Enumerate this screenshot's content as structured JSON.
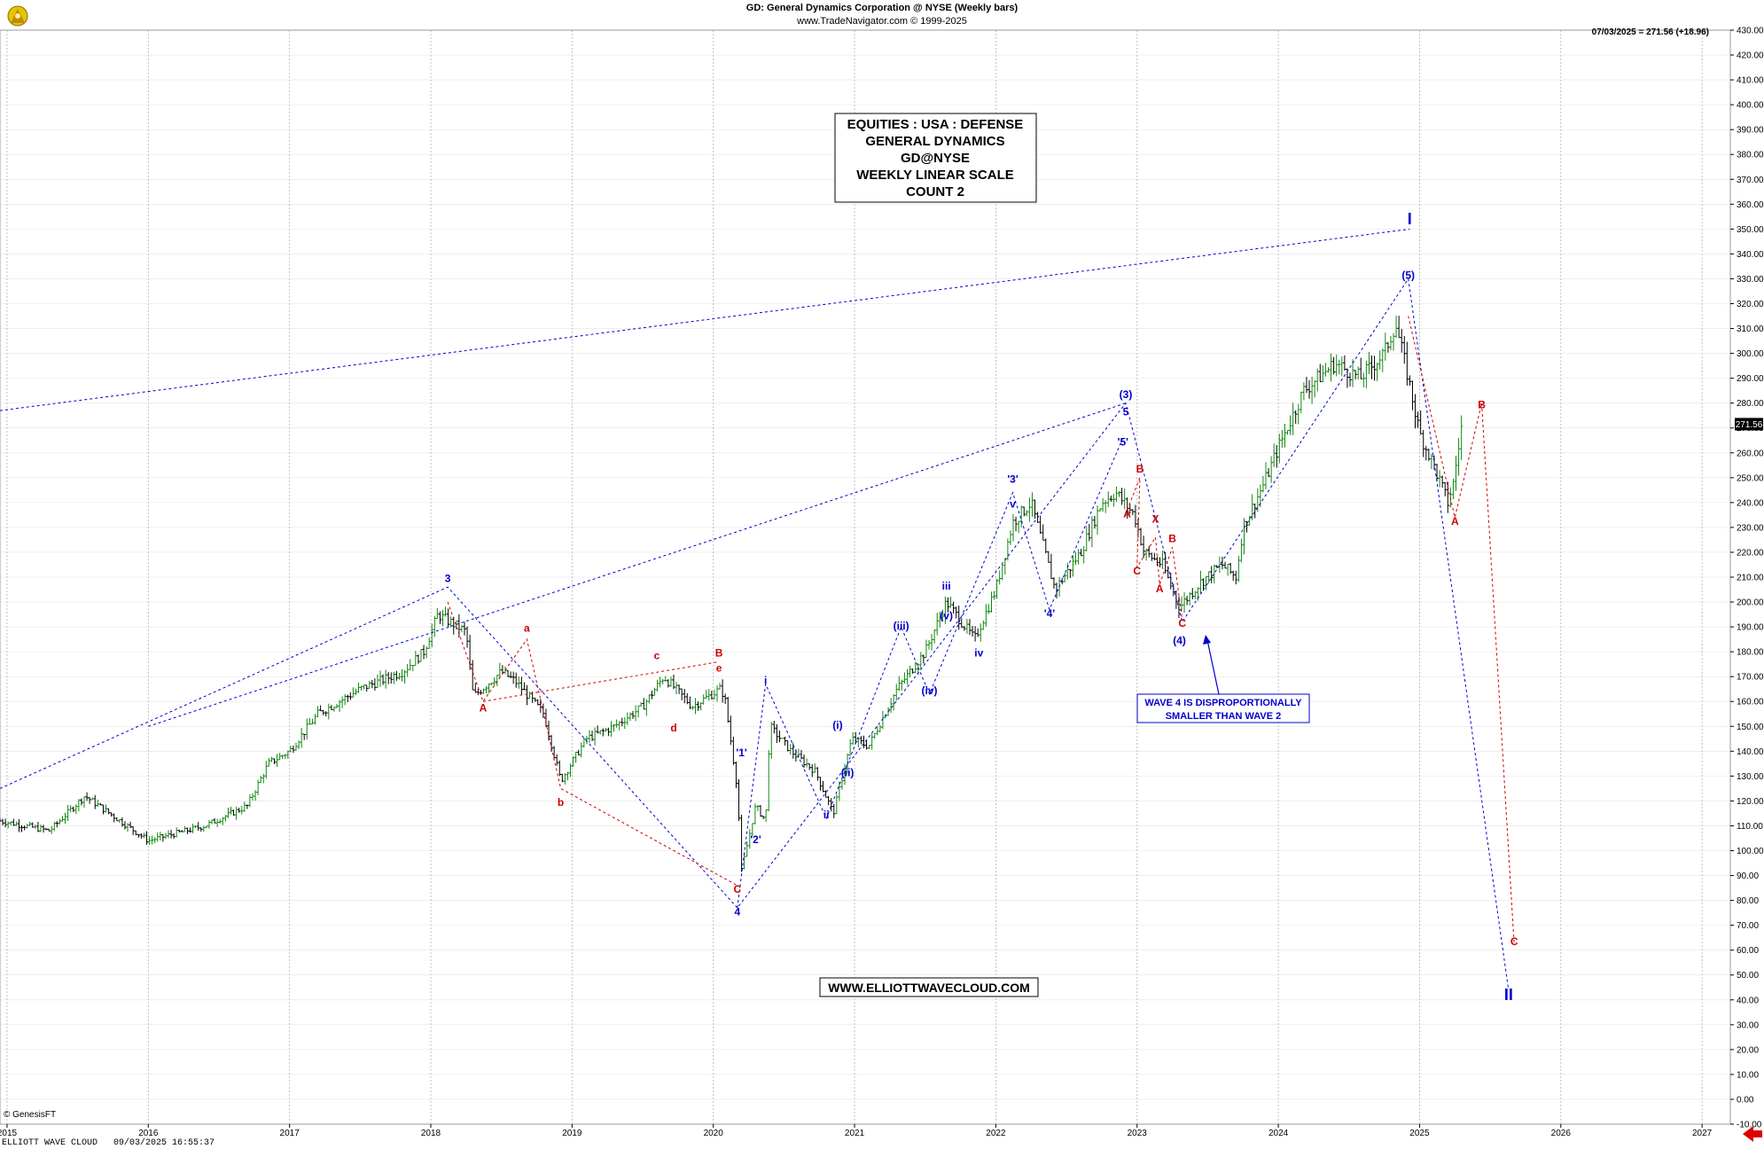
{
  "header": {
    "title": "GD:  General Dynamics Corporation @ NYSE  (Weekly bars)",
    "subtitle": "www.TradeNavigator.com © 1999-2025",
    "last_price_note": "07/03/2025 = 271.56 (+18.96)",
    "logo_text": "© GenesisFT"
  },
  "info_box": [
    "EQUITIES : USA : DEFENSE",
    "GENERAL DYNAMICS",
    "GD@NYSE",
    "WEEKLY LINEAR SCALE",
    "COUNT 2"
  ],
  "website_box": "WWW.ELLIOTTWAVECLOUD.COM",
  "note_box": [
    "WAVE 4 IS DISPROPORTIONALLY",
    "SMALLER THAN WAVE 2"
  ],
  "footer": "ELLIOTT WAVE CLOUD   09/03/2025 16:55:37",
  "last_price_label": "271.56",
  "colors": {
    "blue": "#0000cc",
    "red": "#cc0000",
    "grid": "#b4b4b4",
    "up": "#118811",
    "down": "#000000"
  },
  "chart_data": {
    "type": "line",
    "subtype": "weekly price bars with Elliott Wave annotations",
    "x_axis": {
      "labels": [
        "2015",
        "2016",
        "2017",
        "2018",
        "2019",
        "2020",
        "2021",
        "2022",
        "2023",
        "2024",
        "2025",
        "2026",
        "2027"
      ],
      "range": [
        2014.95,
        2027.2
      ]
    },
    "y_axis": {
      "min": -10,
      "max": 430,
      "step": 10,
      "position": "right",
      "unit": "USD"
    },
    "grid": true,
    "price_anchors": [
      [
        2014.95,
        112
      ],
      [
        2015.3,
        108
      ],
      [
        2015.55,
        122
      ],
      [
        2015.8,
        112
      ],
      [
        2016.0,
        104
      ],
      [
        2016.4,
        110
      ],
      [
        2016.7,
        118
      ],
      [
        2016.85,
        135
      ],
      [
        2017.0,
        140
      ],
      [
        2017.2,
        155
      ],
      [
        2017.5,
        165
      ],
      [
        2017.8,
        172
      ],
      [
        2017.95,
        180
      ],
      [
        2018.05,
        195
      ],
      [
        2018.25,
        188
      ],
      [
        2018.3,
        162
      ],
      [
        2018.5,
        172
      ],
      [
        2018.6,
        168
      ],
      [
        2018.8,
        155
      ],
      [
        2018.92,
        128
      ],
      [
        2019.1,
        145
      ],
      [
        2019.3,
        150
      ],
      [
        2019.5,
        158
      ],
      [
        2019.65,
        170
      ],
      [
        2019.85,
        158
      ],
      [
        2020.05,
        165
      ],
      [
        2020.08,
        162
      ],
      [
        2020.17,
        125
      ],
      [
        2020.2,
        92
      ],
      [
        2020.3,
        118
      ],
      [
        2020.37,
        112
      ],
      [
        2020.4,
        150
      ],
      [
        2020.55,
        140
      ],
      [
        2020.72,
        132
      ],
      [
        2020.85,
        115
      ],
      [
        2020.98,
        145
      ],
      [
        2021.1,
        142
      ],
      [
        2021.3,
        165
      ],
      [
        2021.5,
        180
      ],
      [
        2021.65,
        200
      ],
      [
        2021.85,
        185
      ],
      [
        2022.0,
        205
      ],
      [
        2022.12,
        232
      ],
      [
        2022.25,
        240
      ],
      [
        2022.42,
        205
      ],
      [
        2022.6,
        220
      ],
      [
        2022.75,
        240
      ],
      [
        2022.85,
        244
      ],
      [
        2022.98,
        235
      ],
      [
        2023.05,
        220
      ],
      [
        2023.18,
        215
      ],
      [
        2023.3,
        198
      ],
      [
        2023.45,
        208
      ],
      [
        2023.6,
        215
      ],
      [
        2023.7,
        210
      ],
      [
        2023.75,
        230
      ],
      [
        2023.9,
        248
      ],
      [
        2024.0,
        262
      ],
      [
        2024.18,
        285
      ],
      [
        2024.4,
        296
      ],
      [
        2024.58,
        290
      ],
      [
        2024.75,
        300
      ],
      [
        2024.83,
        312
      ],
      [
        2024.92,
        290
      ],
      [
        2025.0,
        268
      ],
      [
        2025.1,
        255
      ],
      [
        2025.2,
        240
      ],
      [
        2025.24,
        248
      ],
      [
        2025.3,
        271.56
      ]
    ],
    "annotations": [
      {
        "label": "I",
        "x": 2024.93,
        "y": 352,
        "color": "blue",
        "size": "large"
      },
      {
        "label": "II",
        "x": 2025.63,
        "y": 40,
        "color": "blue",
        "size": "large"
      },
      {
        "label": "(5)",
        "x": 2024.92,
        "y": 330,
        "color": "blue"
      },
      {
        "label": "(3)",
        "x": 2022.92,
        "y": 282,
        "color": "blue"
      },
      {
        "label": "(4)",
        "x": 2023.3,
        "y": 183,
        "color": "blue"
      },
      {
        "label": "3",
        "x": 2018.12,
        "y": 208,
        "color": "blue"
      },
      {
        "label": "4",
        "x": 2020.17,
        "y": 74,
        "color": "blue"
      },
      {
        "label": "5",
        "x": 2022.92,
        "y": 275,
        "color": "blue"
      },
      {
        "label": "'5'",
        "x": 2022.9,
        "y": 263,
        "color": "blue"
      },
      {
        "label": "'3'",
        "x": 2022.12,
        "y": 248,
        "color": "blue"
      },
      {
        "label": "v",
        "x": 2022.12,
        "y": 238,
        "color": "blue"
      },
      {
        "label": "'4'",
        "x": 2022.38,
        "y": 194,
        "color": "blue"
      },
      {
        "label": "iii",
        "x": 2021.65,
        "y": 205,
        "color": "blue"
      },
      {
        "label": "(v)",
        "x": 2021.65,
        "y": 193,
        "color": "blue"
      },
      {
        "label": "(iii)",
        "x": 2021.33,
        "y": 189,
        "color": "blue"
      },
      {
        "label": "(iv)",
        "x": 2021.53,
        "y": 163,
        "color": "blue"
      },
      {
        "label": "iv",
        "x": 2021.88,
        "y": 178,
        "color": "blue"
      },
      {
        "label": "i",
        "x": 2020.37,
        "y": 167,
        "color": "blue"
      },
      {
        "label": "(i)",
        "x": 2020.88,
        "y": 149,
        "color": "blue"
      },
      {
        "label": "(ii)",
        "x": 2020.95,
        "y": 130,
        "color": "blue"
      },
      {
        "label": "ii",
        "x": 2020.8,
        "y": 113,
        "color": "blue"
      },
      {
        "label": "'1'",
        "x": 2020.2,
        "y": 138,
        "color": "blue"
      },
      {
        "label": "'2'",
        "x": 2020.3,
        "y": 103,
        "color": "blue"
      },
      {
        "label": "a",
        "x": 2018.68,
        "y": 188,
        "color": "red"
      },
      {
        "label": "A",
        "x": 2018.37,
        "y": 156,
        "color": "red"
      },
      {
        "label": "b",
        "x": 2018.92,
        "y": 118,
        "color": "red"
      },
      {
        "label": "c",
        "x": 2019.6,
        "y": 177,
        "color": "red"
      },
      {
        "label": "d",
        "x": 2019.72,
        "y": 148,
        "color": "red"
      },
      {
        "label": "e",
        "x": 2020.04,
        "y": 172,
        "color": "red"
      },
      {
        "label": "B",
        "x": 2020.04,
        "y": 178,
        "color": "red"
      },
      {
        "label": "C",
        "x": 2020.17,
        "y": 83,
        "color": "red"
      },
      {
        "label": "B",
        "x": 2023.02,
        "y": 252,
        "color": "red"
      },
      {
        "label": "A",
        "x": 2022.93,
        "y": 234,
        "color": "red"
      },
      {
        "label": "X",
        "x": 2023.13,
        "y": 232,
        "color": "red"
      },
      {
        "label": "B",
        "x": 2023.25,
        "y": 224,
        "color": "red"
      },
      {
        "label": "C",
        "x": 2023.0,
        "y": 211,
        "color": "red"
      },
      {
        "label": "A",
        "x": 2023.16,
        "y": 204,
        "color": "red"
      },
      {
        "label": "C",
        "x": 2023.32,
        "y": 190,
        "color": "red"
      },
      {
        "label": "A",
        "x": 2025.25,
        "y": 231,
        "color": "red"
      },
      {
        "label": "B",
        "x": 2025.44,
        "y": 278,
        "color": "red"
      },
      {
        "label": "C",
        "x": 2025.67,
        "y": 62,
        "color": "red"
      }
    ],
    "wave_lines": [
      {
        "color": "blue",
        "points": [
          [
            2014.95,
            125
          ],
          [
            2018.12,
            206
          ],
          [
            2020.17,
            77
          ],
          [
            2022.92,
            280
          ],
          [
            2023.32,
            192
          ],
          [
            2024.92,
            330
          ],
          [
            2025.63,
            44
          ]
        ]
      },
      {
        "color": "blue",
        "points": [
          [
            2014.95,
            277
          ],
          [
            2024.93,
            350
          ]
        ]
      },
      {
        "color": "blue",
        "points": [
          [
            2016.0,
            150
          ],
          [
            2022.92,
            280
          ]
        ]
      },
      {
        "color": "blue",
        "points": [
          [
            2020.17,
            77
          ],
          [
            2020.37,
            167
          ],
          [
            2020.8,
            113
          ],
          [
            2021.33,
            190
          ],
          [
            2021.53,
            163
          ],
          [
            2022.12,
            244
          ],
          [
            2022.38,
            197
          ],
          [
            2022.9,
            266
          ]
        ]
      },
      {
        "color": "red",
        "points": [
          [
            2018.12,
            200
          ],
          [
            2018.37,
            160
          ],
          [
            2018.68,
            185
          ],
          [
            2018.92,
            125
          ],
          [
            2020.17,
            86
          ]
        ]
      },
      {
        "color": "red",
        "points": [
          [
            2018.37,
            160
          ],
          [
            2020.04,
            176
          ]
        ]
      },
      {
        "color": "red",
        "points": [
          [
            2022.93,
            237
          ],
          [
            2023.02,
            250
          ],
          [
            2023.0,
            214
          ],
          [
            2023.13,
            226
          ],
          [
            2023.16,
            207
          ],
          [
            2023.25,
            222
          ],
          [
            2023.32,
            193
          ]
        ]
      },
      {
        "color": "red",
        "points": [
          [
            2024.92,
            315
          ],
          [
            2025.25,
            234
          ],
          [
            2025.44,
            280
          ],
          [
            2025.67,
            62
          ]
        ]
      }
    ]
  }
}
